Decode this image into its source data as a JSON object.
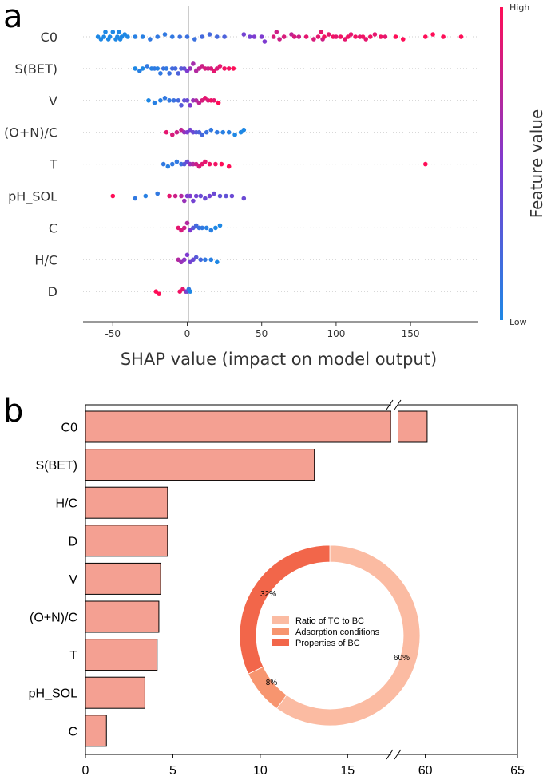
{
  "panel_a": {
    "letter": "a",
    "features": [
      "C0",
      "S(BET)",
      "V",
      "(O+N)/C",
      "T",
      "pH_SOL",
      "C",
      "H/C",
      "D"
    ],
    "xticks": [
      -50,
      0,
      50,
      100,
      150
    ],
    "xlabel": "SHAP value (impact on model output)",
    "colorbar": {
      "high": "High",
      "low": "Low",
      "title": "Feature value",
      "low_color": "#1e88e5",
      "mid_color": "#7e3bd0",
      "high_color": "#ff0d57"
    }
  },
  "panel_b": {
    "letter": "b",
    "xtick_labels": [
      "0",
      "5",
      "10",
      "15",
      "60",
      "65"
    ],
    "donut_percent_labels": [
      "60%",
      "8%",
      "32%"
    ]
  },
  "chart_data": [
    {
      "type": "scatter",
      "title": "",
      "xlabel": "SHAP value (impact on model output)",
      "ylabel": "",
      "xlim": [
        -70,
        195
      ],
      "rows": [
        {
          "feature": "C0",
          "points": [
            [
              -60,
              0
            ],
            [
              -58,
              0.05
            ],
            [
              -56,
              0
            ],
            [
              -55,
              0.1
            ],
            [
              -53,
              0.05
            ],
            [
              -52,
              0
            ],
            [
              -50,
              0.1
            ],
            [
              -48,
              0.05
            ],
            [
              -47,
              0
            ],
            [
              -46,
              0.1
            ],
            [
              -45,
              0.05
            ],
            [
              -44,
              0
            ],
            [
              -42,
              0.05
            ],
            [
              -40,
              0
            ],
            [
              -35,
              0.05
            ],
            [
              -30,
              0
            ],
            [
              -25,
              0.05
            ],
            [
              -20,
              0
            ],
            [
              -15,
              0.05
            ],
            [
              -10,
              0
            ],
            [
              -5,
              0.05
            ],
            [
              0,
              0
            ],
            [
              5,
              0.05
            ],
            [
              10,
              0
            ],
            [
              15,
              0.05
            ],
            [
              20,
              0
            ],
            [
              25,
              0.05
            ],
            [
              38,
              0.05
            ],
            [
              42,
              0
            ],
            [
              45,
              0.05
            ],
            [
              50,
              0
            ],
            [
              52,
              0.1
            ],
            [
              58,
              0
            ],
            [
              60,
              0.1
            ],
            [
              62,
              0.05
            ],
            [
              65,
              0
            ],
            [
              70,
              0.05
            ],
            [
              72,
              0
            ],
            [
              75,
              0.05
            ],
            [
              80,
              0
            ],
            [
              85,
              0.05
            ],
            [
              88,
              0
            ],
            [
              90,
              0.1
            ],
            [
              91,
              0.05
            ],
            [
              92,
              0
            ],
            [
              95,
              0.05
            ],
            [
              98,
              0
            ],
            [
              100,
              0.05
            ],
            [
              103,
              0
            ],
            [
              106,
              0.05
            ],
            [
              108,
              0
            ],
            [
              110,
              0.05
            ],
            [
              113,
              0
            ],
            [
              116,
              0.05
            ],
            [
              118,
              0
            ],
            [
              120,
              0.05
            ],
            [
              123,
              0
            ],
            [
              126,
              0.05
            ],
            [
              130,
              0
            ],
            [
              133,
              0.05
            ],
            [
              140,
              0
            ],
            [
              145,
              0.05
            ],
            [
              160,
              0
            ],
            [
              165,
              0.05
            ],
            [
              172,
              0
            ],
            [
              184,
              0
            ]
          ],
          "feature_values": [
            0,
            0,
            0,
            0,
            0,
            0,
            0,
            0,
            0,
            0,
            0,
            0,
            0,
            0,
            0.05,
            0.05,
            0.1,
            0.1,
            0.1,
            0.1,
            0.15,
            0.15,
            0.15,
            0.2,
            0.2,
            0.2,
            0.25,
            0.45,
            0.45,
            0.5,
            0.5,
            0.5,
            0.85,
            0.8,
            0.8,
            0.85,
            0.75,
            0.85,
            0.8,
            0.9,
            0.85,
            0.9,
            0.9,
            0.8,
            0.95,
            0.9,
            0.95,
            0.9,
            0.95,
            0.9,
            0.95,
            0.9,
            0.95,
            0.9,
            0.95,
            0.9,
            0.95,
            0.9,
            0.95,
            0.9,
            1,
            1,
            1,
            1,
            1,
            1
          ]
        },
        {
          "feature": "S(BET)",
          "points": [
            [
              -35,
              0
            ],
            [
              -32,
              0.05
            ],
            [
              -30,
              0
            ],
            [
              -27,
              0.05
            ],
            [
              -24,
              0
            ],
            [
              -22,
              0.05
            ],
            [
              -20,
              0
            ],
            [
              -18,
              0.1
            ],
            [
              -16,
              0.05
            ],
            [
              -14,
              0
            ],
            [
              -12,
              0.1
            ],
            [
              -10,
              0.05
            ],
            [
              -8,
              0
            ],
            [
              -6,
              0.1
            ],
            [
              -4,
              0.05
            ],
            [
              -2,
              0
            ],
            [
              0,
              0.05
            ],
            [
              2,
              0
            ],
            [
              4,
              0.1
            ],
            [
              6,
              0.05
            ],
            [
              8,
              0
            ],
            [
              10,
              0.05
            ],
            [
              12,
              0
            ],
            [
              14,
              0.05
            ],
            [
              16,
              0
            ],
            [
              18,
              0.05
            ],
            [
              20,
              0
            ],
            [
              22,
              0.05
            ],
            [
              25,
              0
            ],
            [
              28,
              0.05
            ],
            [
              31,
              0
            ]
          ],
          "feature_values": [
            0,
            0.05,
            0,
            0.1,
            0.05,
            0.1,
            0.05,
            0.1,
            0.15,
            0.1,
            0.15,
            0.2,
            0.2,
            0.25,
            0.3,
            0.35,
            0.5,
            0.6,
            0.65,
            0.7,
            0.75,
            0.8,
            0.85,
            0.8,
            0.85,
            0.9,
            0.85,
            0.9,
            0.95,
            0.95,
            1
          ]
        },
        {
          "feature": "V",
          "points": [
            [
              -26,
              0
            ],
            [
              -22,
              0.05
            ],
            [
              -18,
              0
            ],
            [
              -15,
              0.05
            ],
            [
              -12,
              0
            ],
            [
              -9,
              0.05
            ],
            [
              -6,
              0
            ],
            [
              -4,
              0.1
            ],
            [
              -2,
              0.05
            ],
            [
              0,
              0
            ],
            [
              2,
              0.1
            ],
            [
              4,
              0.05
            ],
            [
              6,
              0
            ],
            [
              8,
              0.05
            ],
            [
              10,
              0
            ],
            [
              12,
              0.05
            ],
            [
              14,
              0
            ],
            [
              16,
              0.05
            ],
            [
              18,
              0
            ],
            [
              21,
              0.05
            ]
          ],
          "feature_values": [
            0,
            0.05,
            0.05,
            0.1,
            0.1,
            0.15,
            0.2,
            0.3,
            0.35,
            0.4,
            0.5,
            0.6,
            0.7,
            0.75,
            0.85,
            0.9,
            0.85,
            0.95,
            0.9,
            1
          ]
        },
        {
          "feature": "(O+N)/C",
          "points": [
            [
              -14,
              0
            ],
            [
              -10,
              0.05
            ],
            [
              -7,
              0
            ],
            [
              -4,
              0.05
            ],
            [
              -2,
              0
            ],
            [
              0,
              0.1
            ],
            [
              2,
              0.05
            ],
            [
              4,
              0
            ],
            [
              6,
              0.05
            ],
            [
              8,
              0
            ],
            [
              10,
              0.05
            ],
            [
              13,
              0
            ],
            [
              16,
              0.05
            ],
            [
              20,
              0
            ],
            [
              24,
              0.05
            ],
            [
              28,
              0
            ],
            [
              32,
              0.05
            ],
            [
              36,
              0
            ],
            [
              38,
              0.05
            ]
          ],
          "feature_values": [
            0.9,
            0.85,
            0.8,
            0.75,
            0.6,
            0.5,
            0.45,
            0.4,
            0.3,
            0.25,
            0.2,
            0.15,
            0.1,
            0.1,
            0.05,
            0.05,
            0,
            0,
            0
          ]
        },
        {
          "feature": "T",
          "points": [
            [
              -16,
              0
            ],
            [
              -13,
              0.05
            ],
            [
              -10,
              0
            ],
            [
              -7,
              0.05
            ],
            [
              -4,
              0
            ],
            [
              -2,
              0.1
            ],
            [
              0,
              0.05
            ],
            [
              2,
              0
            ],
            [
              4,
              0.05
            ],
            [
              6,
              0
            ],
            [
              8,
              0.05
            ],
            [
              10,
              0
            ],
            [
              12,
              0.05
            ],
            [
              15,
              0
            ],
            [
              19,
              0.05
            ],
            [
              23,
              0
            ],
            [
              28,
              0.05
            ],
            [
              160,
              0
            ]
          ],
          "feature_values": [
            0.1,
            0.05,
            0.1,
            0.1,
            0.15,
            0.3,
            0.4,
            0.6,
            0.7,
            0.8,
            0.85,
            0.9,
            0.9,
            0.95,
            0.95,
            1,
            1,
            1
          ]
        },
        {
          "feature": "pH_SOL",
          "points": [
            [
              -50,
              0
            ],
            [
              -35,
              0.05
            ],
            [
              -28,
              0
            ],
            [
              -20,
              0.05
            ],
            [
              -12,
              0
            ],
            [
              -8,
              0.05
            ],
            [
              -4,
              0
            ],
            [
              -2,
              0.1
            ],
            [
              0,
              0.05
            ],
            [
              2,
              0
            ],
            [
              4,
              0.1
            ],
            [
              6,
              0.05
            ],
            [
              9,
              0
            ],
            [
              12,
              0.05
            ],
            [
              15,
              0
            ],
            [
              18,
              0.05
            ],
            [
              22,
              0
            ],
            [
              26,
              0.05
            ],
            [
              30,
              0
            ],
            [
              38,
              0.05
            ]
          ],
          "feature_values": [
            1,
            0.1,
            0.05,
            0.1,
            0.9,
            0.8,
            0.7,
            0.6,
            0.5,
            0.5,
            0.45,
            0.45,
            0.4,
            0.4,
            0.45,
            0.4,
            0.35,
            0.35,
            0.4,
            0.4
          ]
        },
        {
          "feature": "C",
          "points": [
            [
              -6,
              0
            ],
            [
              -4,
              0.05
            ],
            [
              -2,
              0
            ],
            [
              0,
              0.1
            ],
            [
              2,
              0.05
            ],
            [
              4,
              0
            ],
            [
              6,
              0.05
            ],
            [
              8,
              0
            ],
            [
              10,
              0.05
            ],
            [
              13,
              0
            ],
            [
              16,
              0.05
            ],
            [
              19,
              0
            ],
            [
              22,
              0.05
            ]
          ],
          "feature_values": [
            0.9,
            0.85,
            0.8,
            0.7,
            0.5,
            0.3,
            0.2,
            0.15,
            0.1,
            0.05,
            0.05,
            0,
            0
          ]
        },
        {
          "feature": "H/C",
          "points": [
            [
              -6,
              0
            ],
            [
              -4,
              0.05
            ],
            [
              -2,
              0
            ],
            [
              0,
              0.1
            ],
            [
              2,
              0.05
            ],
            [
              4,
              0
            ],
            [
              6,
              0.05
            ],
            [
              9,
              0
            ],
            [
              12,
              0.05
            ],
            [
              16,
              0
            ],
            [
              20,
              0.05
            ]
          ],
          "feature_values": [
            0.7,
            0.6,
            0.55,
            0.5,
            0.45,
            0.4,
            0.3,
            0.2,
            0.1,
            0.05,
            0
          ]
        },
        {
          "feature": "D",
          "points": [
            [
              -21,
              0
            ],
            [
              -19,
              0.05
            ],
            [
              -5,
              0
            ],
            [
              -3,
              0.05
            ],
            [
              -1,
              0
            ],
            [
              0,
              0.1
            ],
            [
              1,
              0.05
            ],
            [
              2,
              0
            ]
          ],
          "feature_values": [
            1,
            1,
            0.95,
            0.9,
            0.6,
            0.4,
            0.1,
            0
          ]
        }
      ]
    },
    {
      "type": "bar",
      "orientation": "horizontal",
      "title": "",
      "xlabel": "",
      "ylabel": "",
      "categories": [
        "C0",
        "S(BET)",
        "H/C",
        "D",
        "V",
        "(O+N)/C",
        "T",
        "pH_SOL",
        "C"
      ],
      "values": [
        60.1,
        13.1,
        4.7,
        4.7,
        4.3,
        4.2,
        4.1,
        3.4,
        1.2
      ],
      "xlim": [
        0,
        65
      ],
      "axis_break": [
        17.5,
        58.5
      ],
      "xticks": [
        0,
        5,
        10,
        15,
        60,
        65
      ],
      "bar_color": "#f4a092"
    },
    {
      "type": "pie",
      "style": "donut",
      "title": "",
      "categories": [
        "Ratio of TC to BC",
        "Adsorption conditions",
        "Properties of BC"
      ],
      "values": [
        60,
        8,
        32
      ],
      "colors": [
        "#fbbba2",
        "#f7956f",
        "#f2664a"
      ]
    }
  ]
}
